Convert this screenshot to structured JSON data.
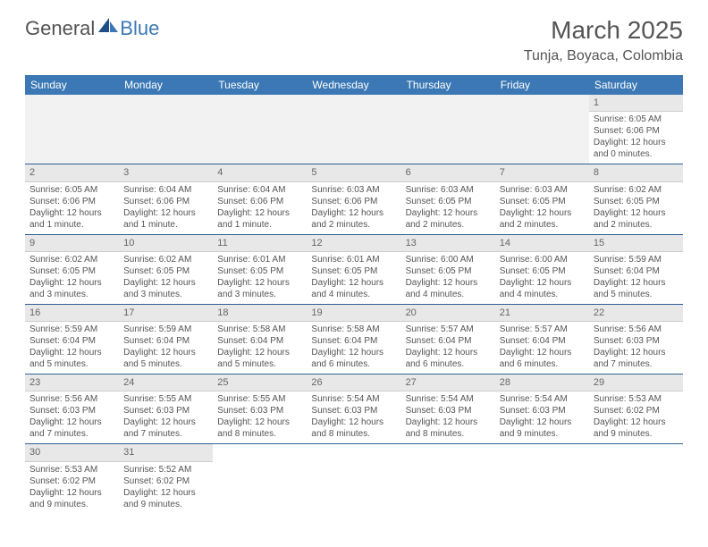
{
  "logo": {
    "general": "General",
    "blue": "Blue",
    "sail_color": "#3b78b5"
  },
  "title": "March 2025",
  "location": "Tunja, Boyaca, Colombia",
  "colors": {
    "header_bg": "#3b78b5",
    "header_text": "#ffffff",
    "day_num_bg": "#e8e8e8",
    "row_divider": "#2f5f93",
    "text": "#555555"
  },
  "weekdays": [
    "Sunday",
    "Monday",
    "Tuesday",
    "Wednesday",
    "Thursday",
    "Friday",
    "Saturday"
  ],
  "weeks": [
    [
      {
        "empty": true
      },
      {
        "empty": true
      },
      {
        "empty": true
      },
      {
        "empty": true
      },
      {
        "empty": true
      },
      {
        "empty": true
      },
      {
        "num": "1",
        "sunrise": "Sunrise: 6:05 AM",
        "sunset": "Sunset: 6:06 PM",
        "daylight": "Daylight: 12 hours and 0 minutes."
      }
    ],
    [
      {
        "num": "2",
        "sunrise": "Sunrise: 6:05 AM",
        "sunset": "Sunset: 6:06 PM",
        "daylight": "Daylight: 12 hours and 1 minute."
      },
      {
        "num": "3",
        "sunrise": "Sunrise: 6:04 AM",
        "sunset": "Sunset: 6:06 PM",
        "daylight": "Daylight: 12 hours and 1 minute."
      },
      {
        "num": "4",
        "sunrise": "Sunrise: 6:04 AM",
        "sunset": "Sunset: 6:06 PM",
        "daylight": "Daylight: 12 hours and 1 minute."
      },
      {
        "num": "5",
        "sunrise": "Sunrise: 6:03 AM",
        "sunset": "Sunset: 6:06 PM",
        "daylight": "Daylight: 12 hours and 2 minutes."
      },
      {
        "num": "6",
        "sunrise": "Sunrise: 6:03 AM",
        "sunset": "Sunset: 6:05 PM",
        "daylight": "Daylight: 12 hours and 2 minutes."
      },
      {
        "num": "7",
        "sunrise": "Sunrise: 6:03 AM",
        "sunset": "Sunset: 6:05 PM",
        "daylight": "Daylight: 12 hours and 2 minutes."
      },
      {
        "num": "8",
        "sunrise": "Sunrise: 6:02 AM",
        "sunset": "Sunset: 6:05 PM",
        "daylight": "Daylight: 12 hours and 2 minutes."
      }
    ],
    [
      {
        "num": "9",
        "sunrise": "Sunrise: 6:02 AM",
        "sunset": "Sunset: 6:05 PM",
        "daylight": "Daylight: 12 hours and 3 minutes."
      },
      {
        "num": "10",
        "sunrise": "Sunrise: 6:02 AM",
        "sunset": "Sunset: 6:05 PM",
        "daylight": "Daylight: 12 hours and 3 minutes."
      },
      {
        "num": "11",
        "sunrise": "Sunrise: 6:01 AM",
        "sunset": "Sunset: 6:05 PM",
        "daylight": "Daylight: 12 hours and 3 minutes."
      },
      {
        "num": "12",
        "sunrise": "Sunrise: 6:01 AM",
        "sunset": "Sunset: 6:05 PM",
        "daylight": "Daylight: 12 hours and 4 minutes."
      },
      {
        "num": "13",
        "sunrise": "Sunrise: 6:00 AM",
        "sunset": "Sunset: 6:05 PM",
        "daylight": "Daylight: 12 hours and 4 minutes."
      },
      {
        "num": "14",
        "sunrise": "Sunrise: 6:00 AM",
        "sunset": "Sunset: 6:05 PM",
        "daylight": "Daylight: 12 hours and 4 minutes."
      },
      {
        "num": "15",
        "sunrise": "Sunrise: 5:59 AM",
        "sunset": "Sunset: 6:04 PM",
        "daylight": "Daylight: 12 hours and 5 minutes."
      }
    ],
    [
      {
        "num": "16",
        "sunrise": "Sunrise: 5:59 AM",
        "sunset": "Sunset: 6:04 PM",
        "daylight": "Daylight: 12 hours and 5 minutes."
      },
      {
        "num": "17",
        "sunrise": "Sunrise: 5:59 AM",
        "sunset": "Sunset: 6:04 PM",
        "daylight": "Daylight: 12 hours and 5 minutes."
      },
      {
        "num": "18",
        "sunrise": "Sunrise: 5:58 AM",
        "sunset": "Sunset: 6:04 PM",
        "daylight": "Daylight: 12 hours and 5 minutes."
      },
      {
        "num": "19",
        "sunrise": "Sunrise: 5:58 AM",
        "sunset": "Sunset: 6:04 PM",
        "daylight": "Daylight: 12 hours and 6 minutes."
      },
      {
        "num": "20",
        "sunrise": "Sunrise: 5:57 AM",
        "sunset": "Sunset: 6:04 PM",
        "daylight": "Daylight: 12 hours and 6 minutes."
      },
      {
        "num": "21",
        "sunrise": "Sunrise: 5:57 AM",
        "sunset": "Sunset: 6:04 PM",
        "daylight": "Daylight: 12 hours and 6 minutes."
      },
      {
        "num": "22",
        "sunrise": "Sunrise: 5:56 AM",
        "sunset": "Sunset: 6:03 PM",
        "daylight": "Daylight: 12 hours and 7 minutes."
      }
    ],
    [
      {
        "num": "23",
        "sunrise": "Sunrise: 5:56 AM",
        "sunset": "Sunset: 6:03 PM",
        "daylight": "Daylight: 12 hours and 7 minutes."
      },
      {
        "num": "24",
        "sunrise": "Sunrise: 5:55 AM",
        "sunset": "Sunset: 6:03 PM",
        "daylight": "Daylight: 12 hours and 7 minutes."
      },
      {
        "num": "25",
        "sunrise": "Sunrise: 5:55 AM",
        "sunset": "Sunset: 6:03 PM",
        "daylight": "Daylight: 12 hours and 8 minutes."
      },
      {
        "num": "26",
        "sunrise": "Sunrise: 5:54 AM",
        "sunset": "Sunset: 6:03 PM",
        "daylight": "Daylight: 12 hours and 8 minutes."
      },
      {
        "num": "27",
        "sunrise": "Sunrise: 5:54 AM",
        "sunset": "Sunset: 6:03 PM",
        "daylight": "Daylight: 12 hours and 8 minutes."
      },
      {
        "num": "28",
        "sunrise": "Sunrise: 5:54 AM",
        "sunset": "Sunset: 6:03 PM",
        "daylight": "Daylight: 12 hours and 9 minutes."
      },
      {
        "num": "29",
        "sunrise": "Sunrise: 5:53 AM",
        "sunset": "Sunset: 6:02 PM",
        "daylight": "Daylight: 12 hours and 9 minutes."
      }
    ],
    [
      {
        "num": "30",
        "sunrise": "Sunrise: 5:53 AM",
        "sunset": "Sunset: 6:02 PM",
        "daylight": "Daylight: 12 hours and 9 minutes."
      },
      {
        "num": "31",
        "sunrise": "Sunrise: 5:52 AM",
        "sunset": "Sunset: 6:02 PM",
        "daylight": "Daylight: 12 hours and 9 minutes."
      },
      {
        "empty": true
      },
      {
        "empty": true
      },
      {
        "empty": true
      },
      {
        "empty": true
      },
      {
        "empty": true
      }
    ]
  ]
}
